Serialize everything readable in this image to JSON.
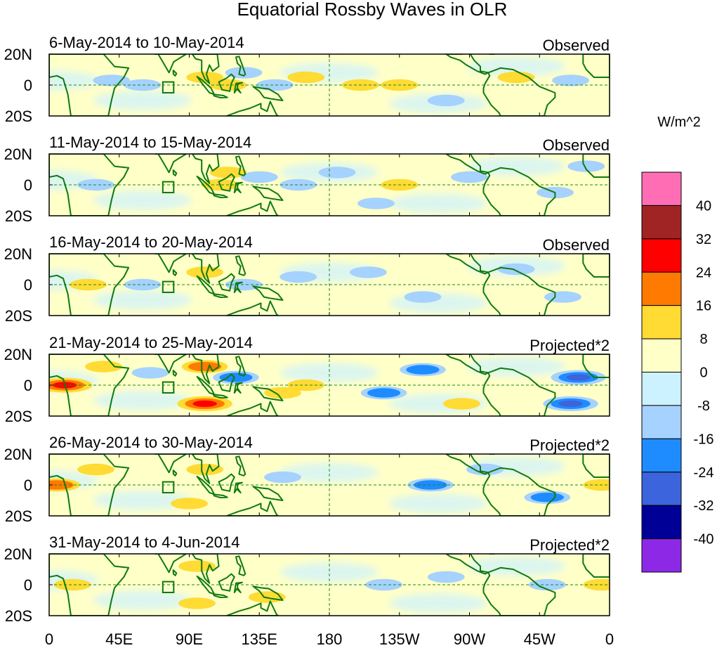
{
  "chart_data": {
    "type": "heatmap",
    "title": "Equatorial Rossby Waves in OLR",
    "xlabel": "",
    "ylabel": "",
    "x_ticks": [
      "0",
      "45E",
      "90E",
      "135E",
      "180",
      "135W",
      "90W",
      "45W",
      "0"
    ],
    "y_ticks": [
      "20N",
      "0",
      "20S"
    ],
    "xlim": [
      0,
      360
    ],
    "ylim": [
      -20,
      20
    ],
    "colorbar": {
      "units": "W/m^2",
      "labels": [
        "40",
        "32",
        "24",
        "16",
        "8",
        "0",
        "-8",
        "-16",
        "-24",
        "-32",
        "-40"
      ],
      "colors": [
        "#ff6eb4",
        "#a12424",
        "#ff0000",
        "#ff7a00",
        "#ffdb33",
        "#ffffc8",
        "#cdf2ff",
        "#a5d2ff",
        "#1e8cff",
        "#3c64dc",
        "#000096",
        "#8c28e6"
      ]
    },
    "panels": [
      {
        "period": "6-May-2014 to 10-May-2014",
        "kind": "Observed",
        "anomalies": [
          {
            "lon": 40,
            "lat": 3,
            "value": -8
          },
          {
            "lon": 60,
            "lat": 0,
            "value": -8
          },
          {
            "lon": 100,
            "lat": 5,
            "value": 8
          },
          {
            "lon": 115,
            "lat": 0,
            "value": 8
          },
          {
            "lon": 125,
            "lat": 8,
            "value": -8
          },
          {
            "lon": 145,
            "lat": 0,
            "value": -8
          },
          {
            "lon": 165,
            "lat": 5,
            "value": 8
          },
          {
            "lon": 200,
            "lat": 0,
            "value": 8
          },
          {
            "lon": 225,
            "lat": 0,
            "value": 8
          },
          {
            "lon": 255,
            "lat": -10,
            "value": -8
          },
          {
            "lon": 300,
            "lat": 5,
            "value": 8
          },
          {
            "lon": 335,
            "lat": 3,
            "value": -8
          }
        ]
      },
      {
        "period": "11-May-2014 to 15-May-2014",
        "kind": "Observed",
        "anomalies": [
          {
            "lon": 30,
            "lat": 0,
            "value": -8
          },
          {
            "lon": 110,
            "lat": 0,
            "value": 8
          },
          {
            "lon": 115,
            "lat": 8,
            "value": 8
          },
          {
            "lon": 135,
            "lat": 5,
            "value": -8
          },
          {
            "lon": 160,
            "lat": 0,
            "value": -8
          },
          {
            "lon": 185,
            "lat": 8,
            "value": -8
          },
          {
            "lon": 210,
            "lat": -12,
            "value": -8
          },
          {
            "lon": 225,
            "lat": 0,
            "value": 8
          },
          {
            "lon": 270,
            "lat": 5,
            "value": -8
          },
          {
            "lon": 325,
            "lat": -5,
            "value": -8
          },
          {
            "lon": 345,
            "lat": 12,
            "value": -8
          }
        ]
      },
      {
        "period": "16-May-2014 to 20-May-2014",
        "kind": "Observed",
        "anomalies": [
          {
            "lon": 25,
            "lat": 0,
            "value": 8
          },
          {
            "lon": 60,
            "lat": 0,
            "value": -8
          },
          {
            "lon": 100,
            "lat": 8,
            "value": 8
          },
          {
            "lon": 125,
            "lat": 0,
            "value": -8
          },
          {
            "lon": 160,
            "lat": 5,
            "value": -8
          },
          {
            "lon": 205,
            "lat": 8,
            "value": -8
          },
          {
            "lon": 240,
            "lat": -8,
            "value": -8
          },
          {
            "lon": 300,
            "lat": 10,
            "value": -8
          },
          {
            "lon": 330,
            "lat": -8,
            "value": -8
          }
        ]
      },
      {
        "period": "21-May-2014 to 25-May-2014",
        "kind": "Projected*2",
        "anomalies": [
          {
            "lon": 10,
            "lat": 0,
            "value": 24
          },
          {
            "lon": 35,
            "lat": 12,
            "value": 8
          },
          {
            "lon": 65,
            "lat": 8,
            "value": -8
          },
          {
            "lon": 100,
            "lat": 12,
            "value": 16
          },
          {
            "lon": 100,
            "lat": -12,
            "value": 24
          },
          {
            "lon": 120,
            "lat": 5,
            "value": -16
          },
          {
            "lon": 150,
            "lat": -5,
            "value": 8
          },
          {
            "lon": 165,
            "lat": 0,
            "value": 8
          },
          {
            "lon": 215,
            "lat": -5,
            "value": -16
          },
          {
            "lon": 240,
            "lat": 10,
            "value": -16
          },
          {
            "lon": 265,
            "lat": -12,
            "value": 8
          },
          {
            "lon": 340,
            "lat": 5,
            "value": -24
          },
          {
            "lon": 335,
            "lat": -12,
            "value": -24
          }
        ]
      },
      {
        "period": "26-May-2014 to 30-May-2014",
        "kind": "Projected*2",
        "anomalies": [
          {
            "lon": 5,
            "lat": 0,
            "value": 16
          },
          {
            "lon": 30,
            "lat": 10,
            "value": 8
          },
          {
            "lon": 90,
            "lat": -12,
            "value": 8
          },
          {
            "lon": 100,
            "lat": 10,
            "value": 8
          },
          {
            "lon": 150,
            "lat": 5,
            "value": -8
          },
          {
            "lon": 245,
            "lat": 0,
            "value": -16
          },
          {
            "lon": 280,
            "lat": 10,
            "value": -8
          },
          {
            "lon": 320,
            "lat": -8,
            "value": -16
          },
          {
            "lon": 355,
            "lat": 0,
            "value": 8
          }
        ]
      },
      {
        "period": "31-May-2014 to 4-Jun-2014",
        "kind": "Projected*2",
        "anomalies": [
          {
            "lon": 15,
            "lat": 0,
            "value": 8
          },
          {
            "lon": 95,
            "lat": 12,
            "value": 8
          },
          {
            "lon": 95,
            "lat": -12,
            "value": 8
          },
          {
            "lon": 140,
            "lat": -8,
            "value": 8
          },
          {
            "lon": 215,
            "lat": 0,
            "value": -8
          },
          {
            "lon": 255,
            "lat": 5,
            "value": -8
          },
          {
            "lon": 320,
            "lat": 0,
            "value": -8
          },
          {
            "lon": 355,
            "lat": 0,
            "value": 8
          }
        ]
      }
    ]
  }
}
